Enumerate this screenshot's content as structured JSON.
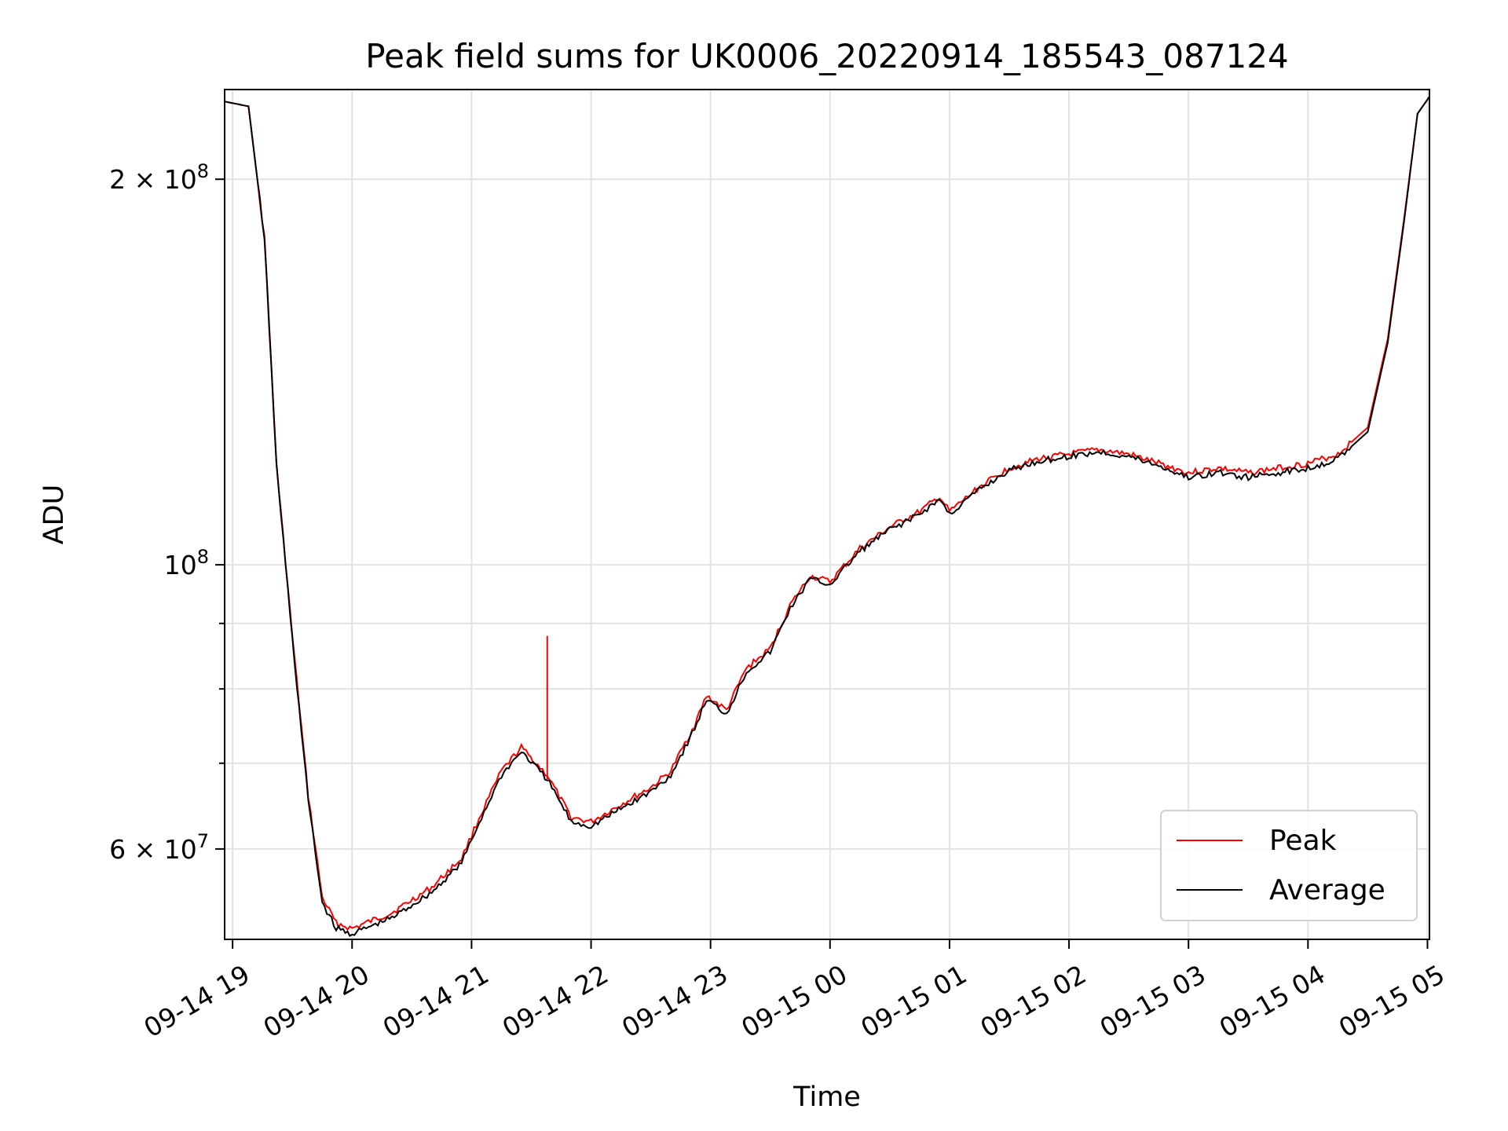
{
  "chart_data": {
    "type": "line",
    "title": "Peak field sums for UK0006_20220914_185543_087124",
    "xlabel": "Time",
    "ylabel": "ADU",
    "yscale": "log",
    "grid": true,
    "legend_position": "bottom-right",
    "xlim": [
      "2022-09-14T18:56",
      "2022-09-15T05:01"
    ],
    "ylim": [
      51000000,
      235000000
    ],
    "x_ticks": [
      {
        "t": "2022-09-14T19:00",
        "label": "09-14 19"
      },
      {
        "t": "2022-09-14T20:00",
        "label": "09-14 20"
      },
      {
        "t": "2022-09-14T21:00",
        "label": "09-14 21"
      },
      {
        "t": "2022-09-14T22:00",
        "label": "09-14 22"
      },
      {
        "t": "2022-09-14T23:00",
        "label": "09-14 23"
      },
      {
        "t": "2022-09-15T00:00",
        "label": "09-15 00"
      },
      {
        "t": "2022-09-15T01:00",
        "label": "09-15 01"
      },
      {
        "t": "2022-09-15T02:00",
        "label": "09-15 02"
      },
      {
        "t": "2022-09-15T03:00",
        "label": "09-15 03"
      },
      {
        "t": "2022-09-15T04:00",
        "label": "09-15 04"
      },
      {
        "t": "2022-09-15T05:00",
        "label": "09-15 05"
      }
    ],
    "y_ticks_major": [
      {
        "v": 60000000,
        "mant": "6 × 10",
        "exp": "7"
      },
      {
        "v": 100000000,
        "mant": "10",
        "exp": "8"
      },
      {
        "v": 200000000,
        "mant": "2 × 10",
        "exp": "8"
      }
    ],
    "y_ticks_minor": [
      70000000,
      80000000,
      90000000
    ],
    "series": [
      {
        "name": "Peak",
        "color": "#ff0000",
        "x": [
          "2022-09-14T18:56",
          "2022-09-14T19:08",
          "2022-09-14T19:16",
          "2022-09-14T19:22",
          "2022-09-14T19:30",
          "2022-09-14T19:38",
          "2022-09-14T19:45",
          "2022-09-14T19:52",
          "2022-09-14T20:00",
          "2022-09-14T20:20",
          "2022-09-14T20:40",
          "2022-09-14T20:55",
          "2022-09-14T21:05",
          "2022-09-14T21:15",
          "2022-09-14T21:25",
          "2022-09-14T21:38",
          "2022-09-14T21:50",
          "2022-09-14T22:00",
          "2022-09-14T22:15",
          "2022-09-14T22:30",
          "2022-09-14T22:40",
          "2022-09-14T22:52",
          "2022-09-14T22:58",
          "2022-09-14T23:08",
          "2022-09-14T23:18",
          "2022-09-14T23:30",
          "2022-09-14T23:40",
          "2022-09-14T23:50",
          "2022-09-15T00:00",
          "2022-09-15T00:15",
          "2022-09-15T00:30",
          "2022-09-15T00:45",
          "2022-09-15T00:55",
          "2022-09-15T01:00",
          "2022-09-15T01:15",
          "2022-09-15T01:30",
          "2022-09-15T01:45",
          "2022-09-15T02:00",
          "2022-09-15T02:15",
          "2022-09-15T02:30",
          "2022-09-15T02:45",
          "2022-09-15T03:00",
          "2022-09-15T03:15",
          "2022-09-15T03:30",
          "2022-09-15T03:45",
          "2022-09-15T04:00",
          "2022-09-15T04:15",
          "2022-09-15T04:30",
          "2022-09-15T04:40",
          "2022-09-15T04:48",
          "2022-09-15T04:55",
          "2022-09-15T05:01"
        ],
        "y": [
          230000000,
          228000000,
          180000000,
          120000000,
          88000000,
          66000000,
          55000000,
          52500000,
          52000000,
          53500000,
          56000000,
          59000000,
          64000000,
          69000000,
          72000000,
          68500000,
          63500000,
          63000000,
          65000000,
          67000000,
          69000000,
          75000000,
          79000000,
          77000000,
          83000000,
          86000000,
          93000000,
          98000000,
          97000000,
          103000000,
          107000000,
          110000000,
          113000000,
          110000000,
          115000000,
          119000000,
          121000000,
          122000000,
          123000000,
          122000000,
          120000000,
          118000000,
          119000000,
          118000000,
          119000000,
          120000000,
          122000000,
          128000000,
          150000000,
          185000000,
          225000000,
          232000000
        ]
      },
      {
        "name": "Average",
        "color": "#000000",
        "x": [
          "2022-09-14T18:56",
          "2022-09-14T19:08",
          "2022-09-14T19:16",
          "2022-09-14T19:22",
          "2022-09-14T19:30",
          "2022-09-14T19:38",
          "2022-09-14T19:45",
          "2022-09-14T19:52",
          "2022-09-14T20:00",
          "2022-09-14T20:20",
          "2022-09-14T20:40",
          "2022-09-14T20:55",
          "2022-09-14T21:05",
          "2022-09-14T21:15",
          "2022-09-14T21:25",
          "2022-09-14T21:38",
          "2022-09-14T21:50",
          "2022-09-14T22:00",
          "2022-09-14T22:15",
          "2022-09-14T22:30",
          "2022-09-14T22:40",
          "2022-09-14T22:52",
          "2022-09-14T22:58",
          "2022-09-14T23:08",
          "2022-09-14T23:18",
          "2022-09-14T23:30",
          "2022-09-14T23:40",
          "2022-09-14T23:50",
          "2022-09-15T00:00",
          "2022-09-15T00:15",
          "2022-09-15T00:30",
          "2022-09-15T00:45",
          "2022-09-15T00:55",
          "2022-09-15T01:00",
          "2022-09-15T01:15",
          "2022-09-15T01:30",
          "2022-09-15T01:45",
          "2022-09-15T02:00",
          "2022-09-15T02:15",
          "2022-09-15T02:30",
          "2022-09-15T02:45",
          "2022-09-15T03:00",
          "2022-09-15T03:15",
          "2022-09-15T03:30",
          "2022-09-15T03:45",
          "2022-09-15T04:00",
          "2022-09-15T04:15",
          "2022-09-15T04:30",
          "2022-09-15T04:40",
          "2022-09-15T04:48",
          "2022-09-15T04:55",
          "2022-09-15T05:01"
        ],
        "y": [
          230000000,
          228000000,
          180000000,
          120000000,
          87500000,
          65500000,
          54500000,
          52000000,
          51500000,
          53000000,
          55500000,
          58500000,
          63500000,
          68500000,
          71500000,
          68000000,
          63000000,
          62500000,
          64500000,
          66500000,
          68500000,
          74500000,
          78500000,
          76500000,
          82500000,
          85500000,
          92500000,
          97500000,
          96500000,
          102500000,
          106500000,
          109500000,
          112500000,
          109500000,
          114500000,
          118500000,
          120500000,
          121500000,
          122500000,
          121500000,
          119500000,
          117000000,
          118000000,
          117000000,
          118000000,
          119000000,
          121000000,
          127000000,
          149000000,
          184000000,
          225000000,
          232000000
        ]
      }
    ],
    "annotations": [
      {
        "series": "Peak",
        "type": "spike",
        "x": "2022-09-14T21:38",
        "y_top": 88000000,
        "y_base": 68000000
      }
    ]
  }
}
